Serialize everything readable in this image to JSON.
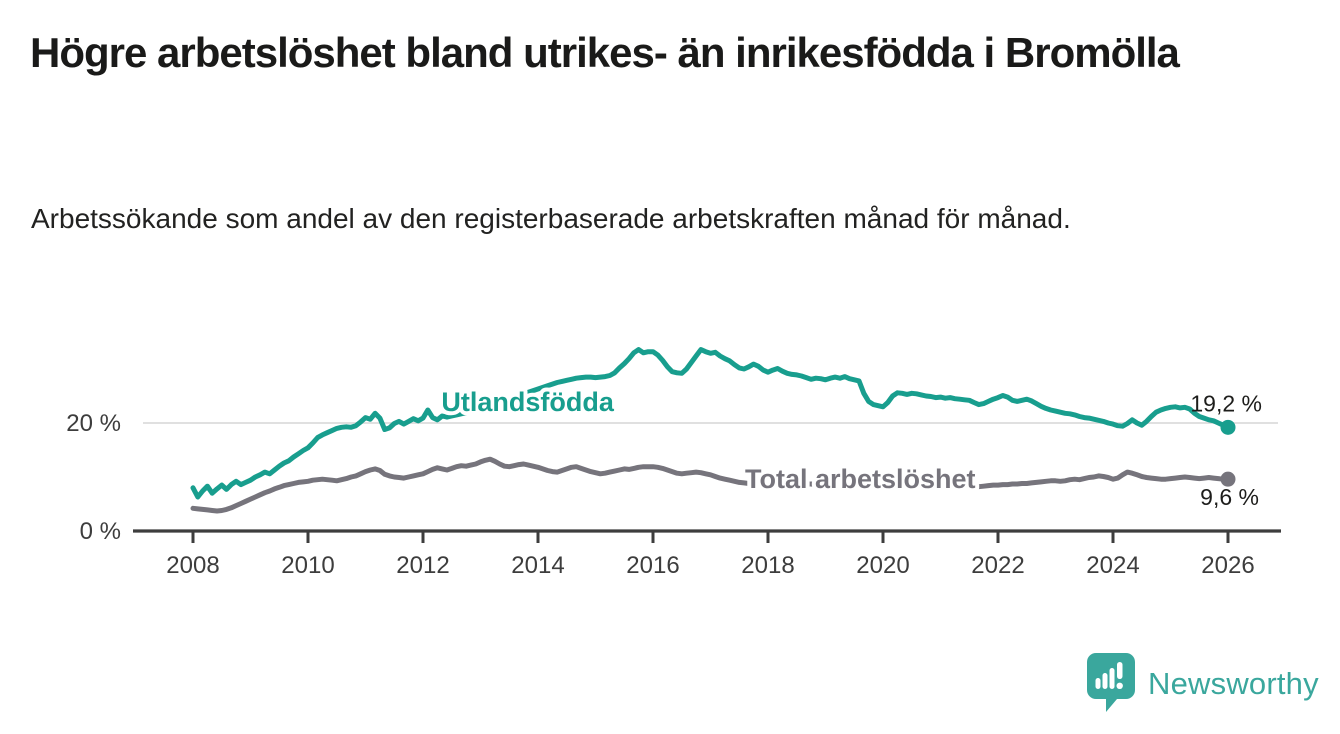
{
  "header": {
    "title": "Högre arbetslöshet bland utrikes- än inrikesfödda i Bromölla",
    "subtitle": "Arbetssökande som andel av den registerbaserade arbetskraften månad för månad."
  },
  "footer": {
    "brand": "Newsworthy"
  },
  "colors": {
    "accent_teal": "#189e8e",
    "gray": "#76747c",
    "logo_teal": "#3aa79d",
    "text_dark": "#1d1d1b",
    "axis": "#3d3d3d",
    "gridline": "#dcdcdc"
  },
  "chart_data": {
    "type": "line",
    "title": "Högre arbetslöshet bland utrikes- än inrikesfödda i Bromölla",
    "subtitle": "Arbetssökande som andel av den registerbaserade arbetskraften månad för månad.",
    "xlabel": "",
    "ylabel": "",
    "x_start_year": 2008,
    "x_step_months": 1,
    "x_ticks": [
      2008,
      2010,
      2012,
      2014,
      2016,
      2018,
      2020,
      2022,
      2024,
      2026
    ],
    "y_axis_labels": [
      {
        "text": "0 %",
        "value": 0
      },
      {
        "text": "20 %",
        "value": 20
      }
    ],
    "y_gridlines": [
      20
    ],
    "ylim": [
      0,
      36
    ],
    "grid": "single light horizontal gridline at 20 %",
    "legend_position": "inline labels on lines",
    "series": [
      {
        "name": "Utlandsfödda",
        "color": "#189e8e",
        "end_label": "19,2 %",
        "end_value": 19.2,
        "label_anchor": {
          "x_year": 2012.32,
          "y_pct": 22.2
        },
        "values": [
          8.0,
          6.3,
          7.4,
          8.3,
          7.0,
          7.8,
          8.5,
          7.7,
          8.6,
          9.2,
          8.6,
          9.0,
          9.4,
          10.0,
          10.4,
          10.9,
          10.6,
          11.3,
          12.0,
          12.6,
          13.0,
          13.7,
          14.3,
          14.9,
          15.4,
          16.3,
          17.3,
          17.8,
          18.2,
          18.6,
          19.0,
          19.2,
          19.3,
          19.2,
          19.5,
          20.2,
          21.0,
          20.7,
          21.8,
          20.9,
          18.8,
          19.1,
          19.9,
          20.3,
          19.8,
          20.3,
          20.8,
          20.4,
          20.9,
          22.4,
          21.0,
          20.6,
          21.3,
          21.1,
          21.3,
          21.5,
          21.7,
          21.9,
          22.1,
          22.4,
          22.7,
          22.9,
          23.2,
          23.4,
          23.7,
          24.0,
          24.3,
          24.6,
          25.0,
          25.3,
          25.7,
          26.0,
          26.3,
          26.6,
          26.9,
          27.2,
          27.5,
          27.7,
          27.9,
          28.1,
          28.3,
          28.4,
          28.5,
          28.5,
          28.4,
          28.5,
          28.6,
          28.8,
          29.3,
          30.2,
          31.0,
          31.9,
          33.0,
          33.6,
          33.0,
          33.2,
          33.2,
          32.6,
          31.6,
          30.4,
          29.5,
          29.3,
          29.2,
          30.0,
          31.2,
          32.4,
          33.6,
          33.2,
          32.9,
          33.1,
          32.4,
          31.9,
          31.5,
          30.8,
          30.2,
          30.0,
          30.4,
          30.9,
          30.5,
          29.8,
          29.4,
          29.8,
          30.1,
          29.6,
          29.2,
          29.0,
          28.9,
          28.7,
          28.4,
          28.1,
          28.3,
          28.2,
          28.0,
          28.3,
          28.5,
          28.3,
          28.6,
          28.2,
          28.0,
          27.8,
          25.5,
          24.0,
          23.4,
          23.2,
          23.0,
          23.8,
          25.0,
          25.6,
          25.5,
          25.3,
          25.5,
          25.4,
          25.2,
          25.0,
          24.9,
          24.7,
          24.8,
          24.6,
          24.7,
          24.5,
          24.4,
          24.3,
          24.2,
          23.8,
          23.4,
          23.6,
          24.0,
          24.4,
          24.7,
          25.1,
          24.8,
          24.2,
          24.0,
          24.2,
          24.4,
          24.1,
          23.6,
          23.1,
          22.7,
          22.4,
          22.2,
          22.0,
          21.8,
          21.7,
          21.5,
          21.2,
          21.0,
          20.9,
          20.7,
          20.5,
          20.3,
          20.0,
          19.8,
          19.5,
          19.4,
          19.9,
          20.6,
          20.0,
          19.6,
          20.3,
          21.2,
          22.0,
          22.4,
          22.7,
          22.9,
          23.0,
          22.8,
          22.9,
          22.6,
          21.8,
          21.2,
          20.9,
          20.6,
          20.4,
          20.0,
          19.6,
          19.2
        ]
      },
      {
        "name": "Total arbetslöshet",
        "color": "#76747c",
        "end_label": "9,6 %",
        "end_value": 9.6,
        "label_anchor": {
          "x_year": 2017.6,
          "y_pct": 7.95
        },
        "values": [
          4.2,
          4.1,
          4.0,
          3.9,
          3.8,
          3.7,
          3.8,
          4.0,
          4.3,
          4.7,
          5.1,
          5.5,
          5.9,
          6.3,
          6.7,
          7.1,
          7.4,
          7.8,
          8.1,
          8.4,
          8.6,
          8.8,
          9.0,
          9.1,
          9.2,
          9.4,
          9.5,
          9.6,
          9.5,
          9.4,
          9.3,
          9.5,
          9.7,
          10.0,
          10.2,
          10.6,
          11.0,
          11.3,
          11.5,
          11.2,
          10.5,
          10.2,
          10.0,
          9.9,
          9.8,
          10.0,
          10.2,
          10.4,
          10.6,
          11.0,
          11.4,
          11.7,
          11.5,
          11.3,
          11.6,
          11.9,
          12.1,
          12.0,
          12.2,
          12.4,
          12.8,
          13.1,
          13.3,
          12.9,
          12.4,
          12.0,
          11.9,
          12.1,
          12.3,
          12.4,
          12.2,
          12.0,
          11.8,
          11.5,
          11.2,
          11.0,
          10.9,
          11.2,
          11.5,
          11.8,
          11.9,
          11.6,
          11.3,
          11.0,
          10.8,
          10.6,
          10.7,
          10.9,
          11.1,
          11.3,
          11.5,
          11.4,
          11.6,
          11.8,
          11.9,
          11.9,
          11.9,
          11.8,
          11.6,
          11.3,
          11.0,
          10.7,
          10.6,
          10.7,
          10.8,
          10.9,
          10.8,
          10.6,
          10.4,
          10.1,
          9.8,
          9.6,
          9.4,
          9.2,
          9.0,
          8.9,
          8.8,
          8.7,
          8.7,
          8.6,
          8.6,
          8.7,
          8.8,
          8.8,
          8.9,
          8.9,
          8.8,
          8.8,
          8.7,
          8.7,
          8.6,
          8.6,
          8.5,
          8.5,
          8.4,
          8.4,
          8.3,
          8.3,
          8.2,
          8.2,
          8.1,
          8.2,
          8.3,
          8.4,
          8.5,
          8.7,
          9.2,
          9.5,
          9.6,
          9.5,
          9.4,
          9.3,
          9.2,
          9.1,
          9.0,
          8.9,
          8.8,
          8.7,
          8.6,
          8.5,
          8.4,
          8.4,
          8.3,
          8.3,
          8.2,
          8.3,
          8.4,
          8.5,
          8.5,
          8.6,
          8.6,
          8.7,
          8.7,
          8.8,
          8.8,
          8.9,
          9.0,
          9.1,
          9.2,
          9.3,
          9.3,
          9.2,
          9.3,
          9.5,
          9.6,
          9.5,
          9.7,
          9.9,
          10.0,
          10.2,
          10.1,
          9.9,
          9.6,
          9.8,
          10.4,
          10.9,
          10.7,
          10.4,
          10.1,
          9.9,
          9.8,
          9.7,
          9.6,
          9.6,
          9.7,
          9.8,
          9.9,
          10.0,
          9.9,
          9.8,
          9.7,
          9.8,
          9.9,
          9.8,
          9.7,
          9.6,
          9.6
        ]
      }
    ]
  }
}
